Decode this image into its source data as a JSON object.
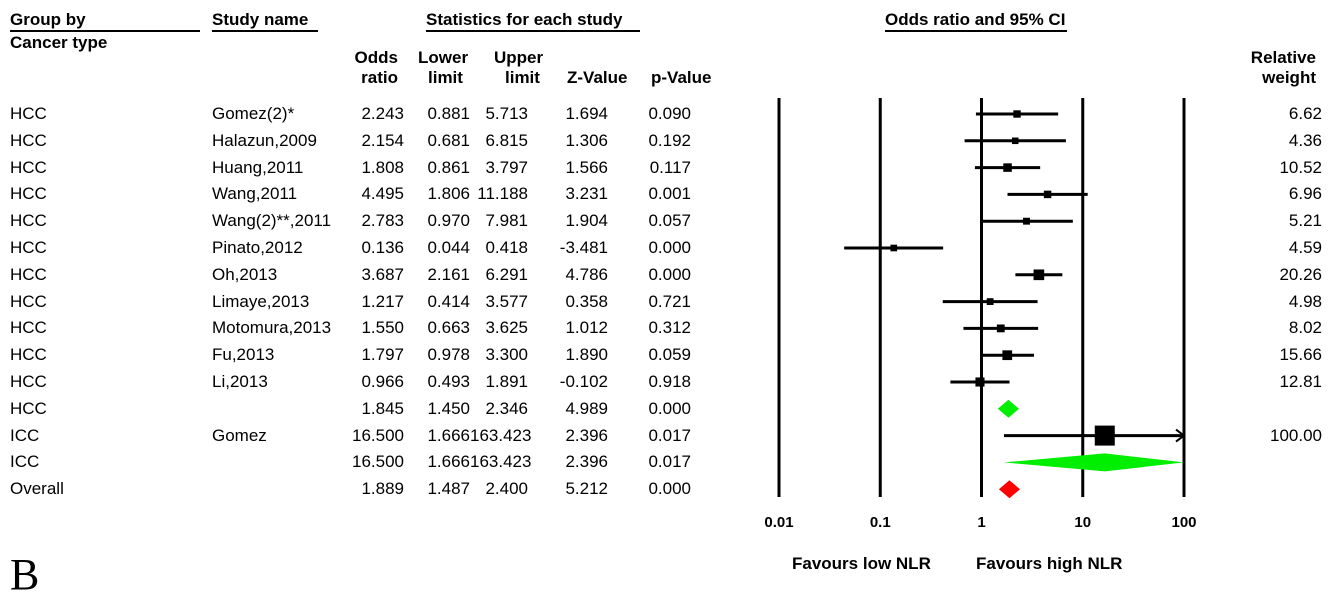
{
  "headers": {
    "group_by": "Group by",
    "cancer_type": "Cancer type",
    "study_name": "Study name",
    "statistics": "Statistics for each study",
    "plot_title": "Odds ratio and 95% CI",
    "odds": [
      "Odds",
      "ratio"
    ],
    "lower": [
      "Lower",
      "limit"
    ],
    "upper": [
      "Upper",
      "limit"
    ],
    "zvalue": "Z-Value",
    "pvalue": "p-Value",
    "relative": [
      "Relative",
      "weight"
    ]
  },
  "rows": [
    {
      "group": "HCC",
      "study": "Gomez(2)*",
      "or": "2.243",
      "lower": "0.881",
      "upper": "5.713",
      "z": "1.694",
      "p": "0.090",
      "weight": "6.62"
    },
    {
      "group": "HCC",
      "study": "Halazun,2009",
      "or": "2.154",
      "lower": "0.681",
      "upper": "6.815",
      "z": "1.306",
      "p": "0.192",
      "weight": "4.36"
    },
    {
      "group": "HCC",
      "study": "Huang,2011",
      "or": "1.808",
      "lower": "0.861",
      "upper": "3.797",
      "z": "1.566",
      "p": "0.117",
      "weight": "10.52"
    },
    {
      "group": "HCC",
      "study": "Wang,2011",
      "or": "4.495",
      "lower": "1.806",
      "upper": "11.188",
      "z": "3.231",
      "p": "0.001",
      "weight": "6.96"
    },
    {
      "group": "HCC",
      "study": "Wang(2)**,2011",
      "or": "2.783",
      "lower": "0.970",
      "upper": "7.981",
      "z": "1.904",
      "p": "0.057",
      "weight": "5.21"
    },
    {
      "group": "HCC",
      "study": "Pinato,2012",
      "or": "0.136",
      "lower": "0.044",
      "upper": "0.418",
      "z": "-3.481",
      "p": "0.000",
      "weight": "4.59"
    },
    {
      "group": "HCC",
      "study": "Oh,2013",
      "or": "3.687",
      "lower": "2.161",
      "upper": "6.291",
      "z": "4.786",
      "p": "0.000",
      "weight": "20.26"
    },
    {
      "group": "HCC",
      "study": "Limaye,2013",
      "or": "1.217",
      "lower": "0.414",
      "upper": "3.577",
      "z": "0.358",
      "p": "0.721",
      "weight": "4.98"
    },
    {
      "group": "HCC",
      "study": "Motomura,2013",
      "or": "1.550",
      "lower": "0.663",
      "upper": "3.625",
      "z": "1.012",
      "p": "0.312",
      "weight": "8.02"
    },
    {
      "group": "HCC",
      "study": "Fu,2013",
      "or": "1.797",
      "lower": "0.978",
      "upper": "3.300",
      "z": "1.890",
      "p": "0.059",
      "weight": "15.66"
    },
    {
      "group": "HCC",
      "study": "Li,2013",
      "or": "0.966",
      "lower": "0.493",
      "upper": "1.891",
      "z": "-0.102",
      "p": "0.918",
      "weight": "12.81"
    },
    {
      "group": "HCC",
      "study": "",
      "or": "1.845",
      "lower": "1.450",
      "upper": "2.346",
      "z": "4.989",
      "p": "0.000",
      "weight": ""
    },
    {
      "group": "ICC",
      "study": "Gomez",
      "or": "16.500",
      "lower": "1.666",
      "upper": "163.423",
      "z": "2.396",
      "p": "0.017",
      "weight": "100.00"
    },
    {
      "group": "ICC",
      "study": "",
      "or": "16.500",
      "lower": "1.666",
      "upper": "163.423",
      "z": "2.396",
      "p": "0.017",
      "weight": ""
    },
    {
      "group": "Overall",
      "study": "",
      "or": "1.889",
      "lower": "1.487",
      "upper": "2.400",
      "z": "5.212",
      "p": "0.000",
      "weight": ""
    }
  ],
  "footer": {
    "favours_low": "Favours low NLR",
    "favours_high": "Favours high NLR",
    "panel_letter": "B"
  },
  "chart_data": {
    "type": "forest",
    "title": "Odds ratio and 95% CI",
    "x_scale": "log",
    "xlim": [
      0.01,
      100
    ],
    "x_ticks": [
      "0.01",
      "0.1",
      "1",
      "10",
      "100"
    ],
    "x_tick_values": [
      0.01,
      0.1,
      1,
      10,
      100
    ],
    "xlabel_left": "Favours low NLR",
    "xlabel_right": "Favours high NLR",
    "points": [
      {
        "label": "Gomez(2)*",
        "or": 2.243,
        "lower": 0.881,
        "upper": 5.713,
        "weight": 6.62,
        "kind": "study"
      },
      {
        "label": "Halazun,2009",
        "or": 2.154,
        "lower": 0.681,
        "upper": 6.815,
        "weight": 4.36,
        "kind": "study"
      },
      {
        "label": "Huang,2011",
        "or": 1.808,
        "lower": 0.861,
        "upper": 3.797,
        "weight": 10.52,
        "kind": "study"
      },
      {
        "label": "Wang,2011",
        "or": 4.495,
        "lower": 1.806,
        "upper": 11.188,
        "weight": 6.96,
        "kind": "study"
      },
      {
        "label": "Wang(2)**,2011",
        "or": 2.783,
        "lower": 0.97,
        "upper": 7.981,
        "weight": 5.21,
        "kind": "study"
      },
      {
        "label": "Pinato,2012",
        "or": 0.136,
        "lower": 0.044,
        "upper": 0.418,
        "weight": 4.59,
        "kind": "study"
      },
      {
        "label": "Oh,2013",
        "or": 3.687,
        "lower": 2.161,
        "upper": 6.291,
        "weight": 20.26,
        "kind": "study"
      },
      {
        "label": "Limaye,2013",
        "or": 1.217,
        "lower": 0.414,
        "upper": 3.577,
        "weight": 4.98,
        "kind": "study"
      },
      {
        "label": "Motomura,2013",
        "or": 1.55,
        "lower": 0.663,
        "upper": 3.625,
        "weight": 8.02,
        "kind": "study"
      },
      {
        "label": "Fu,2013",
        "or": 1.797,
        "lower": 0.978,
        "upper": 3.3,
        "weight": 15.66,
        "kind": "study"
      },
      {
        "label": "Li,2013",
        "or": 0.966,
        "lower": 0.493,
        "upper": 1.891,
        "weight": 12.81,
        "kind": "study"
      },
      {
        "label": "HCC",
        "or": 1.845,
        "lower": 1.45,
        "upper": 2.346,
        "kind": "subtotal",
        "color": "#00ee00"
      },
      {
        "label": "Gomez",
        "or": 16.5,
        "lower": 1.666,
        "upper": 163.423,
        "weight": 100.0,
        "kind": "study"
      },
      {
        "label": "ICC",
        "or": 16.5,
        "lower": 1.666,
        "upper": 163.423,
        "kind": "subtotal",
        "color": "#00ee00"
      },
      {
        "label": "Overall",
        "or": 1.889,
        "lower": 1.487,
        "upper": 2.4,
        "kind": "overall",
        "color": "#ff0000"
      }
    ]
  }
}
